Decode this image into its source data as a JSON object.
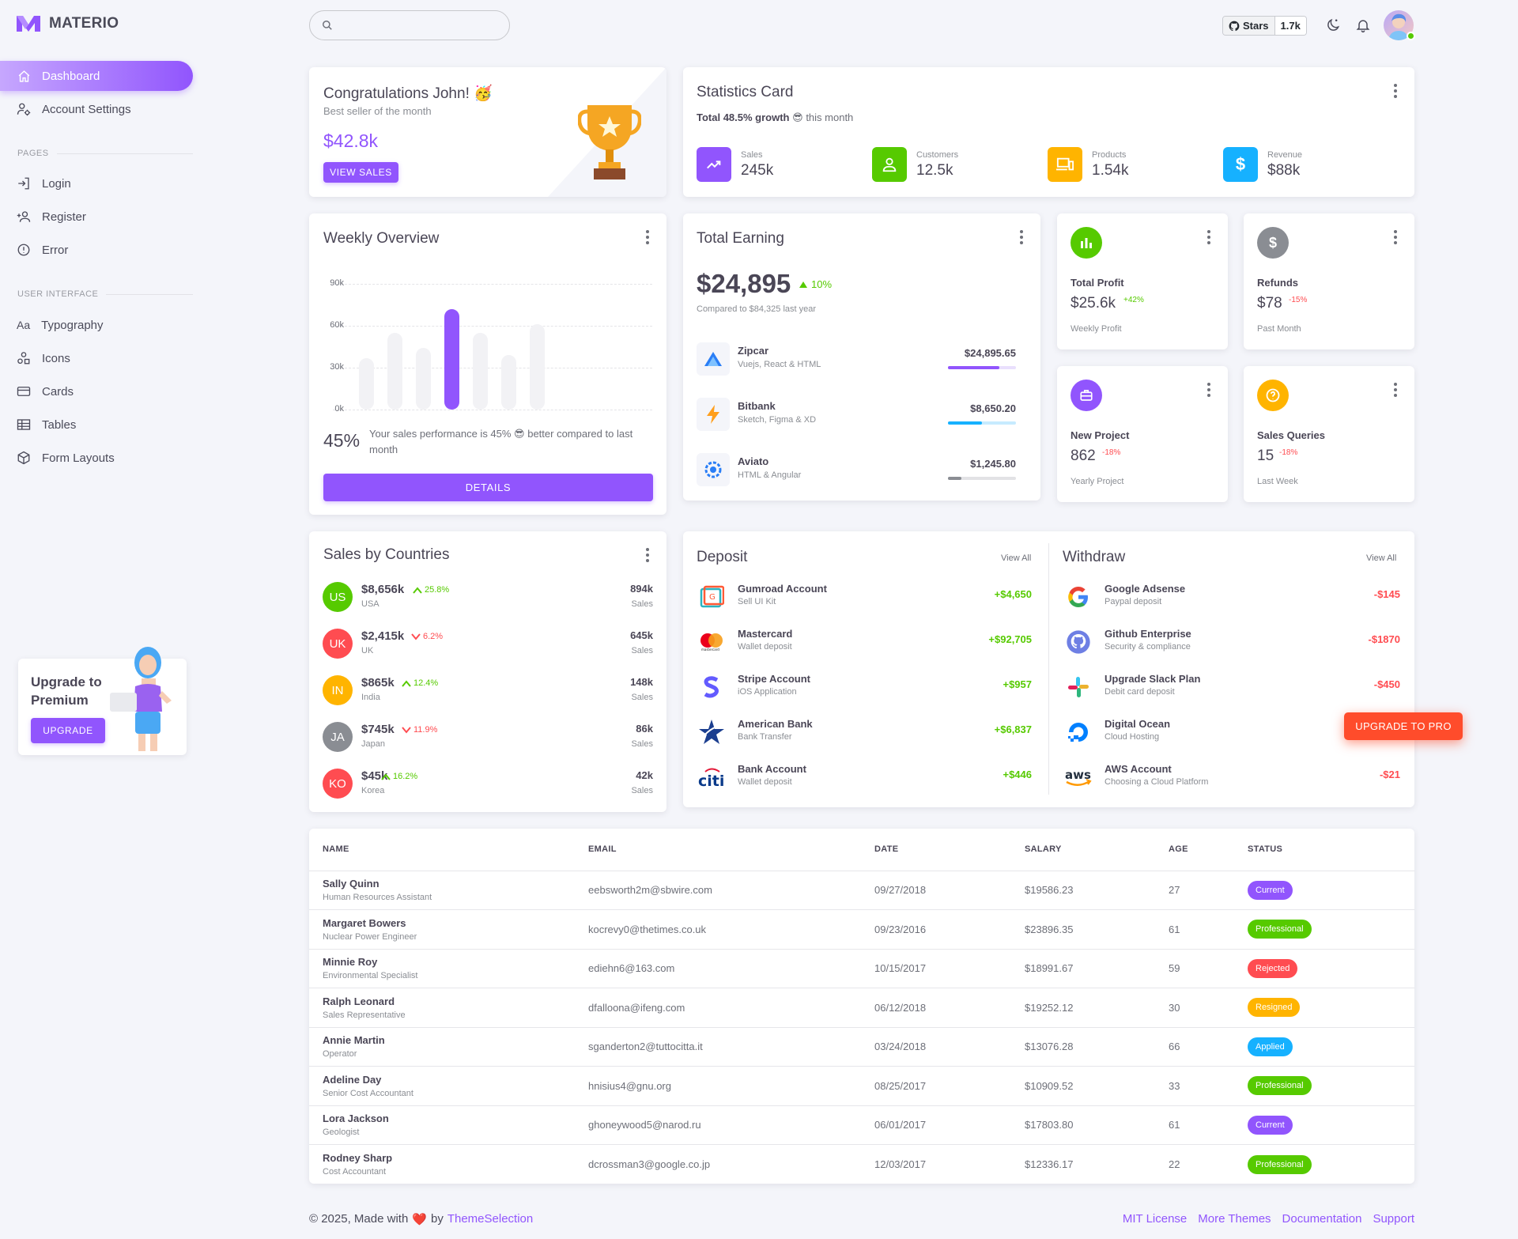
{
  "brand": {
    "name": "MATERIO"
  },
  "sidebar": {
    "items": [
      {
        "label": "Dashboard",
        "icon": "home-icon"
      },
      {
        "label": "Account Settings",
        "icon": "account-cog-icon"
      }
    ],
    "pages_heading": "PAGES",
    "pages": [
      {
        "label": "Login"
      },
      {
        "label": "Register"
      },
      {
        "label": "Error"
      }
    ],
    "ui_heading": "USER INTERFACE",
    "ui": [
      {
        "label": "Typography"
      },
      {
        "label": "Icons"
      },
      {
        "label": "Cards"
      },
      {
        "label": "Tables"
      },
      {
        "label": "Form Layouts"
      }
    ],
    "upgrade": {
      "title_1": "Upgrade to",
      "title_2": "Premium",
      "button": "UPGRADE"
    }
  },
  "header": {
    "search": {
      "placeholder": ""
    },
    "github": {
      "label": "Stars",
      "count": "1.7k"
    }
  },
  "congrats": {
    "title": "Congratulations John! 🥳",
    "subtitle": "Best seller of the month",
    "amount": "$42.8k",
    "button": "VIEW SALES"
  },
  "statistics": {
    "title": "Statistics Card",
    "growth_bold": "Total 48.5% growth",
    "growth_emoji": "😎",
    "growth_rest": "this month",
    "tiles": [
      {
        "label": "Sales",
        "value": "245k",
        "color": "#9155fd",
        "icon": "trending-up-icon"
      },
      {
        "label": "Customers",
        "value": "12.5k",
        "color": "#56ca00",
        "icon": "account-icon"
      },
      {
        "label": "Products",
        "value": "1.54k",
        "color": "#ffb400",
        "icon": "devices-icon"
      },
      {
        "label": "Revenue",
        "value": "$88k",
        "color": "#16b1ff",
        "icon": "dollar-icon"
      }
    ]
  },
  "weekly": {
    "title": "Weekly Overview",
    "percent": "45%",
    "text": "Your sales performance is 45% 😎 better compared to last month",
    "button": "DETAILS",
    "y_ticks": [
      "90k",
      "60k",
      "30k",
      "0k"
    ]
  },
  "chart_data": {
    "type": "bar",
    "title": "Weekly Overview",
    "values": [
      37,
      55,
      44,
      72,
      55,
      39,
      61
    ],
    "ylim": [
      0,
      90
    ],
    "unit": "k",
    "highlight_index": 3,
    "grid": true
  },
  "earning": {
    "title": "Total Earning",
    "amount": "$24,895",
    "delta": "10%",
    "compare": "Compared to $84,325 last year",
    "rows": [
      {
        "name": "Zipcar",
        "sub": "Vuejs, React & HTML",
        "amount": "$24,895.65",
        "progress": 0.75,
        "color": "#9155fd",
        "track": "#e9dffd"
      },
      {
        "name": "Bitbank",
        "sub": "Sketch, Figma & XD",
        "amount": "$8,650.20",
        "progress": 0.5,
        "color": "#16b1ff",
        "track": "#c7ebff"
      },
      {
        "name": "Aviato",
        "sub": "HTML & Angular",
        "amount": "$1,245.80",
        "progress": 0.2,
        "color": "#8a8d93",
        "track": "#e2e2e5"
      }
    ]
  },
  "minis": [
    {
      "title": "Total Profit",
      "value": "$25.6k",
      "delta": "+42%",
      "delta_color": "#56ca00",
      "sub": "Weekly Profit",
      "color": "#56ca00",
      "icon": "poll-icon"
    },
    {
      "title": "Refunds",
      "value": "$78",
      "delta": "-15%",
      "delta_color": "#ff4c51",
      "sub": "Past Month",
      "color": "#8a8d93",
      "icon": "currency-icon"
    },
    {
      "title": "New Project",
      "value": "862",
      "delta": "-18%",
      "delta_color": "#ff4c51",
      "sub": "Yearly Project",
      "color": "#9155fd",
      "icon": "briefcase-icon"
    },
    {
      "title": "Sales Queries",
      "value": "15",
      "delta": "-18%",
      "delta_color": "#ff4c51",
      "sub": "Last Week",
      "color": "#ffb400",
      "icon": "help-circle-icon"
    }
  ],
  "countries": {
    "title": "Sales by Countries",
    "rows": [
      {
        "code": "US",
        "amount": "$8,656k",
        "delta": "25.8%",
        "up": true,
        "name": "USA",
        "sales": "894k",
        "sales_label": "Sales",
        "color": "#56ca00"
      },
      {
        "code": "UK",
        "amount": "$2,415k",
        "delta": "6.2%",
        "up": false,
        "name": "UK",
        "sales": "645k",
        "sales_label": "Sales",
        "color": "#ff4c51"
      },
      {
        "code": "IN",
        "amount": "$865k",
        "delta": "12.4%",
        "up": true,
        "name": "India",
        "sales": "148k",
        "sales_label": "Sales",
        "color": "#ffb400"
      },
      {
        "code": "JA",
        "amount": "$745k",
        "delta": "11.9%",
        "up": false,
        "name": "Japan",
        "sales": "86k",
        "sales_label": "Sales",
        "color": "#8a8d93"
      },
      {
        "code": "KO",
        "amount": "$45k",
        "delta": "16.2%",
        "up": true,
        "name": "Korea",
        "sales": "42k",
        "sales_label": "Sales",
        "color": "#ff4c51"
      }
    ]
  },
  "deposit": {
    "title": "Deposit",
    "view_all": "View All",
    "rows": [
      {
        "name": "Gumroad Account",
        "sub": "Sell UI Kit",
        "amount": "+$4,650",
        "icon": "gumroad-icon"
      },
      {
        "name": "Mastercard",
        "sub": "Wallet deposit",
        "amount": "+$92,705",
        "icon": "mastercard-icon"
      },
      {
        "name": "Stripe Account",
        "sub": "iOS Application",
        "amount": "+$957",
        "icon": "stripe-icon"
      },
      {
        "name": "American Bank",
        "sub": "Bank Transfer",
        "amount": "+$6,837",
        "icon": "american-bank-icon"
      },
      {
        "name": "Bank Account",
        "sub": "Wallet deposit",
        "amount": "+$446",
        "icon": "citi-icon"
      }
    ]
  },
  "withdraw": {
    "title": "Withdraw",
    "view_all": "View All",
    "rows": [
      {
        "name": "Google Adsense",
        "sub": "Paypal deposit",
        "amount": "-$145",
        "icon": "google-icon"
      },
      {
        "name": "Github Enterprise",
        "sub": "Security & compliance",
        "amount": "-$1870",
        "icon": "github-icon"
      },
      {
        "name": "Upgrade Slack Plan",
        "sub": "Debit card deposit",
        "amount": "-$450",
        "icon": "slack-icon"
      },
      {
        "name": "Digital Ocean",
        "sub": "Cloud Hosting",
        "amount": "",
        "icon": "digital-ocean-icon"
      },
      {
        "name": "AWS Account",
        "sub": "Choosing a Cloud Platform",
        "amount": "-$21",
        "icon": "aws-icon"
      }
    ]
  },
  "upgrade_pro": {
    "label": "UPGRADE TO PRO"
  },
  "table": {
    "headers": [
      "NAME",
      "EMAIL",
      "DATE",
      "SALARY",
      "AGE",
      "STATUS"
    ],
    "rows": [
      {
        "name": "Sally Quinn",
        "role": "Human Resources Assistant",
        "email": "eebsworth2m@sbwire.com",
        "date": "09/27/2018",
        "salary": "$19586.23",
        "age": "27",
        "status": "Current",
        "color": "#9155fd"
      },
      {
        "name": "Margaret Bowers",
        "role": "Nuclear Power Engineer",
        "email": "kocrevy0@thetimes.co.uk",
        "date": "09/23/2016",
        "salary": "$23896.35",
        "age": "61",
        "status": "Professional",
        "color": "#56ca00"
      },
      {
        "name": "Minnie Roy",
        "role": "Environmental Specialist",
        "email": "ediehn6@163.com",
        "date": "10/15/2017",
        "salary": "$18991.67",
        "age": "59",
        "status": "Rejected",
        "color": "#ff4c51"
      },
      {
        "name": "Ralph Leonard",
        "role": "Sales Representative",
        "email": "dfalloona@ifeng.com",
        "date": "06/12/2018",
        "salary": "$19252.12",
        "age": "30",
        "status": "Resigned",
        "color": "#ffb400"
      },
      {
        "name": "Annie Martin",
        "role": "Operator",
        "email": "sganderton2@tuttocitta.it",
        "date": "03/24/2018",
        "salary": "$13076.28",
        "age": "66",
        "status": "Applied",
        "color": "#16b1ff"
      },
      {
        "name": "Adeline Day",
        "role": "Senior Cost Accountant",
        "email": "hnisius4@gnu.org",
        "date": "08/25/2017",
        "salary": "$10909.52",
        "age": "33",
        "status": "Professional",
        "color": "#56ca00"
      },
      {
        "name": "Lora Jackson",
        "role": "Geologist",
        "email": "ghoneywood5@narod.ru",
        "date": "06/01/2017",
        "salary": "$17803.80",
        "age": "61",
        "status": "Current",
        "color": "#9155fd"
      },
      {
        "name": "Rodney Sharp",
        "role": "Cost Accountant",
        "email": "dcrossman3@google.co.jp",
        "date": "12/03/2017",
        "salary": "$12336.17",
        "age": "22",
        "status": "Professional",
        "color": "#56ca00"
      }
    ]
  },
  "footer": {
    "copyright": "© 2025, Made with",
    "heart": "❤️",
    "by": "by",
    "company": "ThemeSelection",
    "links": [
      "MIT License",
      "More Themes",
      "Documentation",
      "Support"
    ]
  }
}
